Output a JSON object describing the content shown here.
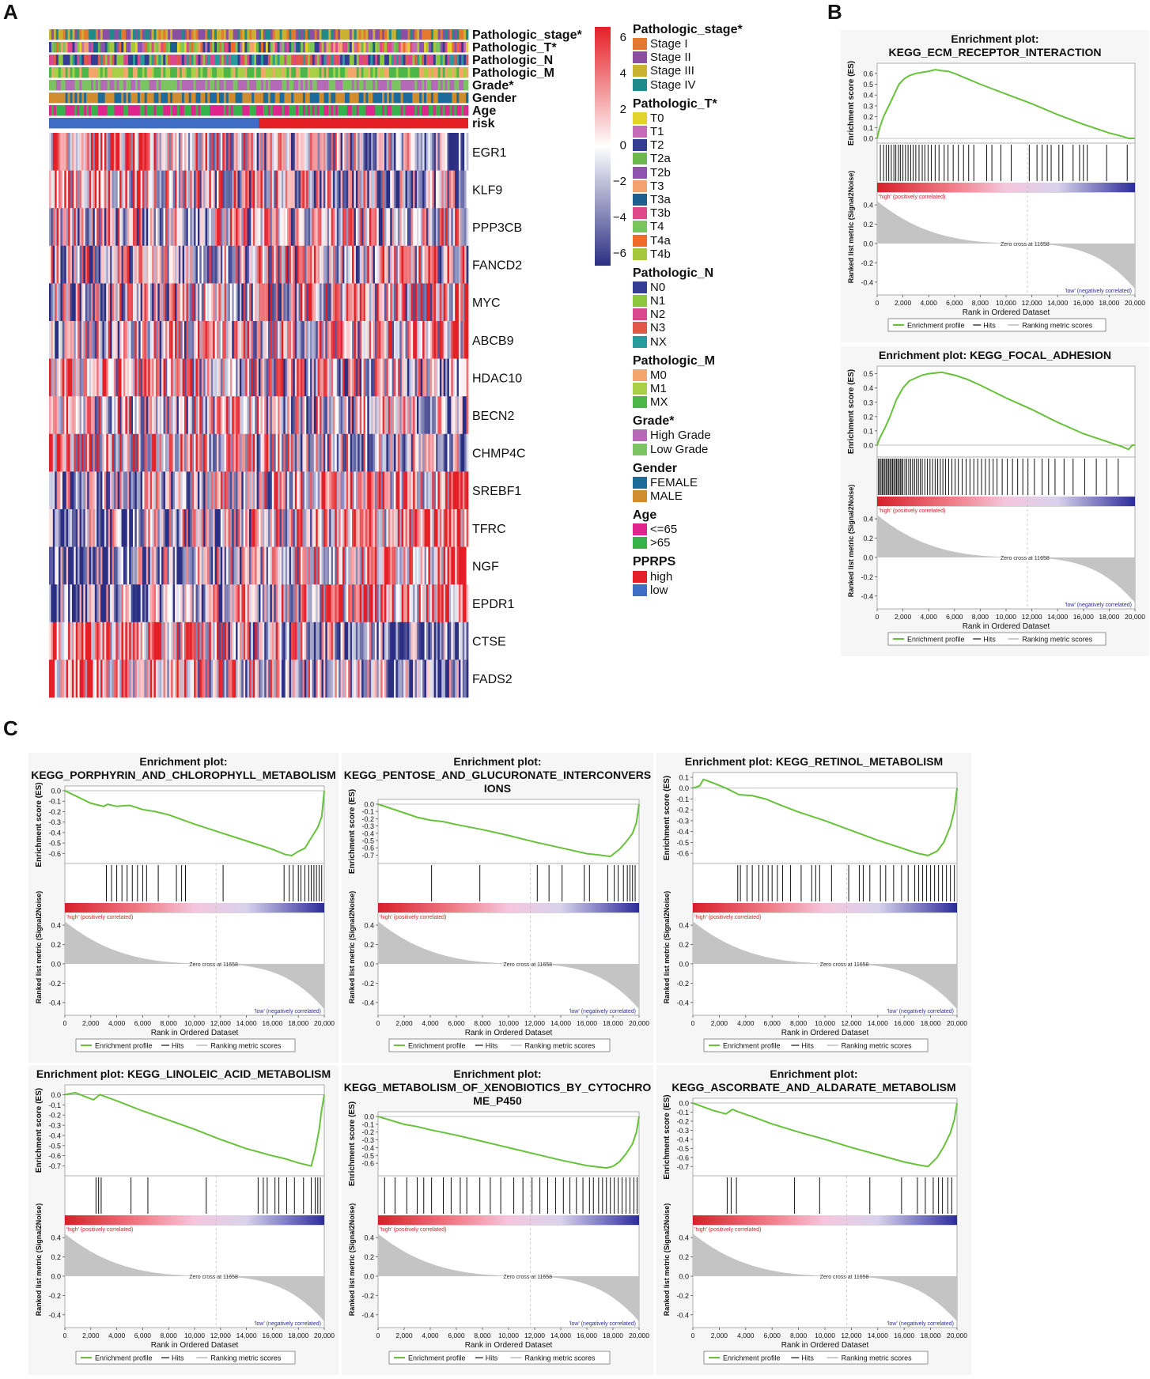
{
  "panels": {
    "a": "A",
    "b": "B",
    "c": "C"
  },
  "colors": {
    "heat_red": "#e41f26",
    "heat_blue": "#2b2f83",
    "es_line": "#67c13b",
    "hit_line": "#111111",
    "metric_fill": "#c4c4c4",
    "risk_high": "#e41f26",
    "risk_low": "#3f6cc4"
  },
  "heatmap": {
    "annotation_tracks": [
      "Pathologic_stage*",
      "Pathologic_T*",
      "Pathologic_N",
      "Pathologic_M",
      "Grade*",
      "Gender",
      "Age",
      "risk"
    ],
    "genes": [
      "EGR1",
      "KLF9",
      "PPP3CB",
      "FANCD2",
      "MYC",
      "ABCB9",
      "HDAC10",
      "BECN2",
      "CHMP4C",
      "SREBF1",
      "TFRC",
      "NGF",
      "EPDR1",
      "CTSE",
      "FADS2"
    ],
    "colorbar_ticks": [
      "6",
      "4",
      "2",
      "0",
      "−2",
      "−4",
      "−6"
    ]
  },
  "legend": [
    {
      "title": "Pathologic_stage*",
      "items": [
        {
          "label": "Stage I",
          "color": "#e4782d"
        },
        {
          "label": "Stage II",
          "color": "#8a4fa0"
        },
        {
          "label": "Stage III",
          "color": "#c9b230"
        },
        {
          "label": "Stage IV",
          "color": "#1f8a8a"
        }
      ]
    },
    {
      "title": "Pathologic_T*",
      "items": [
        {
          "label": "T0",
          "color": "#e3d32c"
        },
        {
          "label": "T1",
          "color": "#c66bb8"
        },
        {
          "label": "T2",
          "color": "#353c93"
        },
        {
          "label": "T2a",
          "color": "#6db84c"
        },
        {
          "label": "T2b",
          "color": "#8e52b0"
        },
        {
          "label": "T3",
          "color": "#f3a26e"
        },
        {
          "label": "T3a",
          "color": "#1c5f8e"
        },
        {
          "label": "T3b",
          "color": "#e0488c"
        },
        {
          "label": "T4",
          "color": "#79c45b"
        },
        {
          "label": "T4a",
          "color": "#ef6b2a"
        },
        {
          "label": "T4b",
          "color": "#a5c73c"
        }
      ]
    },
    {
      "title": "Pathologic_N",
      "items": [
        {
          "label": "N0",
          "color": "#353c93"
        },
        {
          "label": "N1",
          "color": "#8cc63f"
        },
        {
          "label": "N2",
          "color": "#d9478e"
        },
        {
          "label": "N3",
          "color": "#e1574a"
        },
        {
          "label": "NX",
          "color": "#279b9b"
        }
      ]
    },
    {
      "title": "Pathologic_M",
      "items": [
        {
          "label": "M0",
          "color": "#f3a66b"
        },
        {
          "label": "M1",
          "color": "#a8cf45"
        },
        {
          "label": "MX",
          "color": "#4cb748"
        }
      ]
    },
    {
      "title": "Grade*",
      "items": [
        {
          "label": "High Grade",
          "color": "#b56ab8"
        },
        {
          "label": "Low Grade",
          "color": "#7cc361"
        }
      ]
    },
    {
      "title": "Gender",
      "items": [
        {
          "label": "FEMALE",
          "color": "#1d6b9b"
        },
        {
          "label": "MALE",
          "color": "#cf8d2f"
        }
      ]
    },
    {
      "title": "Age",
      "items": [
        {
          "label": "<=65",
          "color": "#e0248d"
        },
        {
          "label": ">65",
          "color": "#35b24a"
        }
      ]
    },
    {
      "title": "PPRPS",
      "items": [
        {
          "label": "high",
          "color": "#e41f26"
        },
        {
          "label": "low",
          "color": "#3f6cc4"
        }
      ]
    }
  ],
  "gsea_common": {
    "es_ylabel": "Enrichment score (ES)",
    "metric_ylabel": "Ranked list metric (Signal2Noise)",
    "xlabel": "Rank in Ordered Dataset",
    "high_label": "'high' (positively correlated)",
    "low_label": "'low' (negatively correlated)",
    "zero_cross": "Zero cross at 11658",
    "legend_profile": "Enrichment profile",
    "legend_hits": "Hits",
    "legend_metric": "Ranking metric scores",
    "x_ticks": [
      "0",
      "2,000",
      "4,000",
      "6,000",
      "8,000",
      "10,000",
      "12,000",
      "14,000",
      "16,000",
      "18,000",
      "20,000"
    ],
    "metric_ticks": [
      "0.4",
      "0.2",
      "0.0",
      "-0.2",
      "-0.4"
    ]
  },
  "chart_data": [
    {
      "type": "line",
      "title": [
        "Enrichment plot:",
        "KEGG_ECM_RECEPTOR_INTERACTION"
      ],
      "xlim": [
        0,
        20000
      ],
      "ylim": [
        0,
        0.65
      ],
      "yticks": [
        "0.6",
        "0.5",
        "0.4",
        "0.3",
        "0.2",
        "0.1",
        "0.0"
      ],
      "x": [
        0,
        200,
        500,
        900,
        1300,
        1700,
        2100,
        2500,
        3000,
        3500,
        4000,
        4500,
        5000,
        5500,
        6000,
        7000,
        8000,
        10000,
        12000,
        14000,
        16000,
        18000,
        19000,
        19500,
        20000
      ],
      "y": [
        0.0,
        0.1,
        0.2,
        0.3,
        0.4,
        0.5,
        0.55,
        0.58,
        0.6,
        0.61,
        0.62,
        0.635,
        0.625,
        0.62,
        0.6,
        0.55,
        0.5,
        0.41,
        0.32,
        0.22,
        0.13,
        0.05,
        0.02,
        0.0,
        0.0
      ],
      "hits": [
        250,
        500,
        700,
        900,
        1100,
        1300,
        1450,
        1650,
        1800,
        2000,
        2200,
        2400,
        2600,
        2800,
        3000,
        3250,
        3500,
        3700,
        3950,
        4200,
        4500,
        4800,
        5200,
        5500,
        5900,
        6300,
        6700,
        7100,
        7500,
        8500,
        8900,
        9600,
        10400,
        11800,
        12400,
        12800,
        13200,
        13500,
        14100,
        14400,
        15200,
        15700,
        16000,
        16300,
        17800,
        19400
      ]
    },
    {
      "type": "line",
      "title": [
        "Enrichment plot: KEGG_FOCAL_ADHESION"
      ],
      "xlim": [
        0,
        20000
      ],
      "ylim": [
        -0.05,
        0.52
      ],
      "yticks": [
        "0.5",
        "0.4",
        "0.3",
        "0.2",
        "0.1",
        "0.0"
      ],
      "x": [
        0,
        200,
        600,
        1000,
        1500,
        2000,
        2500,
        3000,
        3500,
        4000,
        4500,
        5000,
        5500,
        6000,
        7000,
        8000,
        10000,
        12000,
        14000,
        16000,
        18000,
        19000,
        19500,
        19800,
        20000
      ],
      "y": [
        0.0,
        0.05,
        0.12,
        0.2,
        0.32,
        0.4,
        0.45,
        0.47,
        0.49,
        0.5,
        0.505,
        0.51,
        0.5,
        0.49,
        0.46,
        0.42,
        0.33,
        0.25,
        0.16,
        0.08,
        0.02,
        -0.01,
        -0.03,
        0.0,
        0.0
      ],
      "hits": [
        100,
        200,
        300,
        400,
        500,
        600,
        700,
        800,
        900,
        1000,
        1100,
        1200,
        1300,
        1400,
        1500,
        1600,
        1700,
        1800,
        1900,
        2000,
        2150,
        2300,
        2450,
        2600,
        2750,
        2900,
        3050,
        3200,
        3350,
        3500,
        3700,
        3900,
        4100,
        4300,
        4500,
        4700,
        4900,
        5100,
        5300,
        5550,
        5800,
        6050,
        6300,
        6600,
        6900,
        7200,
        7500,
        7800,
        8100,
        8400,
        8700,
        9000,
        9300,
        9700,
        10100,
        10500,
        10900,
        11300,
        11700,
        12200,
        12800,
        13300,
        13800,
        14500,
        15200,
        16100,
        17000,
        17800,
        18700
      ]
    },
    {
      "type": "line",
      "title": [
        "Enrichment plot:",
        "KEGG_PORPHYRIN_AND_CHLOROPHYLL_METABOLISM"
      ],
      "xlim": [
        0,
        20000
      ],
      "ylim": [
        -0.65,
        0.0
      ],
      "yticks": [
        "0.0",
        "-0.1",
        "-0.2",
        "-0.3",
        "-0.4",
        "-0.5",
        "-0.6"
      ],
      "x": [
        0,
        1000,
        2000,
        3000,
        3300,
        4000,
        5000,
        6000,
        7000,
        8000,
        10000,
        12000,
        14000,
        16000,
        17000,
        17500,
        18000,
        18500,
        19000,
        19500,
        19800,
        20000
      ],
      "y": [
        0.0,
        -0.06,
        -0.12,
        -0.15,
        -0.13,
        -0.15,
        -0.14,
        -0.18,
        -0.2,
        -0.23,
        -0.32,
        -0.4,
        -0.48,
        -0.56,
        -0.61,
        -0.62,
        -0.58,
        -0.55,
        -0.45,
        -0.35,
        -0.25,
        0.0
      ],
      "hits": [
        3200,
        3600,
        4000,
        4400,
        4800,
        5200,
        5600,
        6000,
        6300,
        7200,
        8600,
        9000,
        9300,
        12200,
        16900,
        17300,
        17600,
        18000,
        18200,
        18500,
        18800,
        19000,
        19200,
        19400,
        19600,
        19800
      ]
    },
    {
      "type": "line",
      "title": [
        "Enrichment plot:",
        "KEGG_PENTOSE_AND_GLUCURONATE_INTERCONVERS",
        "IONS"
      ],
      "xlim": [
        0,
        20000
      ],
      "ylim": [
        -0.75,
        0.0
      ],
      "yticks": [
        "0.0",
        "-0.1",
        "-0.2",
        "-0.3",
        "-0.4",
        "-0.5",
        "-0.6",
        "-0.7"
      ],
      "x": [
        0,
        1000,
        2000,
        3000,
        4000,
        5000,
        6000,
        8000,
        10000,
        12000,
        14000,
        16000,
        17000,
        17800,
        18500,
        19000,
        19500,
        19800,
        20000
      ],
      "y": [
        0.0,
        -0.06,
        -0.12,
        -0.18,
        -0.22,
        -0.24,
        -0.28,
        -0.35,
        -0.43,
        -0.52,
        -0.6,
        -0.68,
        -0.7,
        -0.72,
        -0.62,
        -0.52,
        -0.4,
        -0.25,
        0.0
      ],
      "hits": [
        4100,
        7800,
        12200,
        13100,
        14100,
        15800,
        16200,
        17600,
        18100,
        18400,
        18800,
        19100,
        19300,
        19500,
        19700
      ]
    },
    {
      "type": "line",
      "title": [
        "Enrichment plot: KEGG_RETINOL_METABOLISM"
      ],
      "xlim": [
        0,
        20000
      ],
      "ylim": [
        -0.65,
        0.1
      ],
      "yticks": [
        "0.1",
        "0.0",
        "-0.1",
        "-0.2",
        "-0.3",
        "-0.4",
        "-0.5",
        "-0.6"
      ],
      "x": [
        0,
        500,
        800,
        1500,
        2500,
        3500,
        4500,
        5500,
        6500,
        8000,
        10000,
        12000,
        14000,
        16000,
        17000,
        17800,
        18500,
        19000,
        19500,
        19800,
        20000
      ],
      "y": [
        0.0,
        0.02,
        0.08,
        0.05,
        0.0,
        -0.06,
        -0.07,
        -0.1,
        -0.15,
        -0.22,
        -0.3,
        -0.39,
        -0.48,
        -0.56,
        -0.6,
        -0.62,
        -0.58,
        -0.5,
        -0.35,
        -0.2,
        0.0
      ],
      "hits": [
        3400,
        3600,
        4100,
        4500,
        5000,
        5300,
        5700,
        6000,
        6400,
        6800,
        7400,
        8200,
        9000,
        9300,
        9600,
        10500,
        11800,
        12600,
        12900,
        13400,
        14200,
        14600,
        15200,
        15800,
        16300,
        16800,
        17100,
        17400,
        17700,
        18000,
        18300,
        18600,
        18900,
        19200,
        19500,
        19800
      ]
    },
    {
      "type": "line",
      "title": [
        "Enrichment plot: KEGG_LINOLEIC_ACID_METABOLISM"
      ],
      "xlim": [
        0,
        20000
      ],
      "ylim": [
        -0.75,
        0.05
      ],
      "yticks": [
        "0.0",
        "-0.1",
        "-0.2",
        "-0.3",
        "-0.4",
        "-0.5",
        "-0.6",
        "-0.7"
      ],
      "x": [
        0,
        800,
        2200,
        2700,
        4000,
        6000,
        8000,
        10000,
        12000,
        14000,
        16000,
        17000,
        18000,
        19000,
        19300,
        19600,
        19800,
        20000
      ],
      "y": [
        0.0,
        0.02,
        -0.05,
        0.0,
        -0.06,
        -0.16,
        -0.25,
        -0.34,
        -0.44,
        -0.53,
        -0.6,
        -0.63,
        -0.67,
        -0.7,
        -0.55,
        -0.35,
        -0.15,
        0.0
      ],
      "hits": [
        2400,
        2600,
        2800,
        5100,
        6400,
        10900,
        14900,
        15300,
        15600,
        16200,
        16500,
        17100,
        17700,
        18400,
        19000,
        19300,
        19500,
        19700
      ]
    },
    {
      "type": "line",
      "title": [
        "Enrichment plot:",
        "KEGG_METABOLISM_OF_XENOBIOTICS_BY_CYTOCHRO",
        "ME_P450"
      ],
      "xlim": [
        0,
        20000
      ],
      "ylim": [
        -0.7,
        0.0
      ],
      "yticks": [
        "0.0",
        "-0.1",
        "-0.2",
        "-0.3",
        "-0.4",
        "-0.5",
        "-0.6"
      ],
      "x": [
        0,
        1000,
        2000,
        3000,
        4000,
        6000,
        8000,
        10000,
        12000,
        14000,
        16000,
        17000,
        17500,
        18000,
        18500,
        19000,
        19500,
        19800,
        20000
      ],
      "y": [
        0.0,
        -0.05,
        -0.1,
        -0.13,
        -0.17,
        -0.24,
        -0.32,
        -0.4,
        -0.48,
        -0.56,
        -0.63,
        -0.65,
        -0.66,
        -0.64,
        -0.58,
        -0.48,
        -0.35,
        -0.2,
        0.0
      ],
      "hits": [
        500,
        1300,
        2200,
        3000,
        3500,
        4100,
        5000,
        5600,
        6300,
        6800,
        7800,
        8600,
        9400,
        10400,
        11100,
        11800,
        12400,
        13000,
        13600,
        14200,
        14700,
        15200,
        15700,
        16200,
        16500,
        16900,
        17200,
        17500,
        17800,
        18100,
        18400,
        18700,
        19000,
        19300,
        19600,
        19850
      ]
    },
    {
      "type": "line",
      "title": [
        "Enrichment plot:",
        "KEGG_ASCORBATE_AND_ALDARATE_METABOLISM"
      ],
      "xlim": [
        0,
        20000
      ],
      "ylim": [
        -0.75,
        0.0
      ],
      "yticks": [
        "0.0",
        "-0.1",
        "-0.2",
        "-0.3",
        "-0.4",
        "-0.5",
        "-0.6",
        "-0.7"
      ],
      "x": [
        0,
        1500,
        2500,
        3000,
        3500,
        4500,
        6000,
        8000,
        10000,
        12000,
        14000,
        16000,
        17000,
        17800,
        18500,
        19000,
        19500,
        19800,
        20000
      ],
      "y": [
        0.0,
        -0.08,
        -0.12,
        -0.07,
        -0.1,
        -0.15,
        -0.23,
        -0.32,
        -0.4,
        -0.49,
        -0.57,
        -0.65,
        -0.68,
        -0.7,
        -0.6,
        -0.48,
        -0.33,
        -0.18,
        0.0
      ],
      "hits": [
        2600,
        2900,
        3300,
        7700,
        9600,
        13400,
        15800,
        17000,
        17600,
        18200,
        18600,
        18900,
        19300,
        19600
      ]
    }
  ]
}
